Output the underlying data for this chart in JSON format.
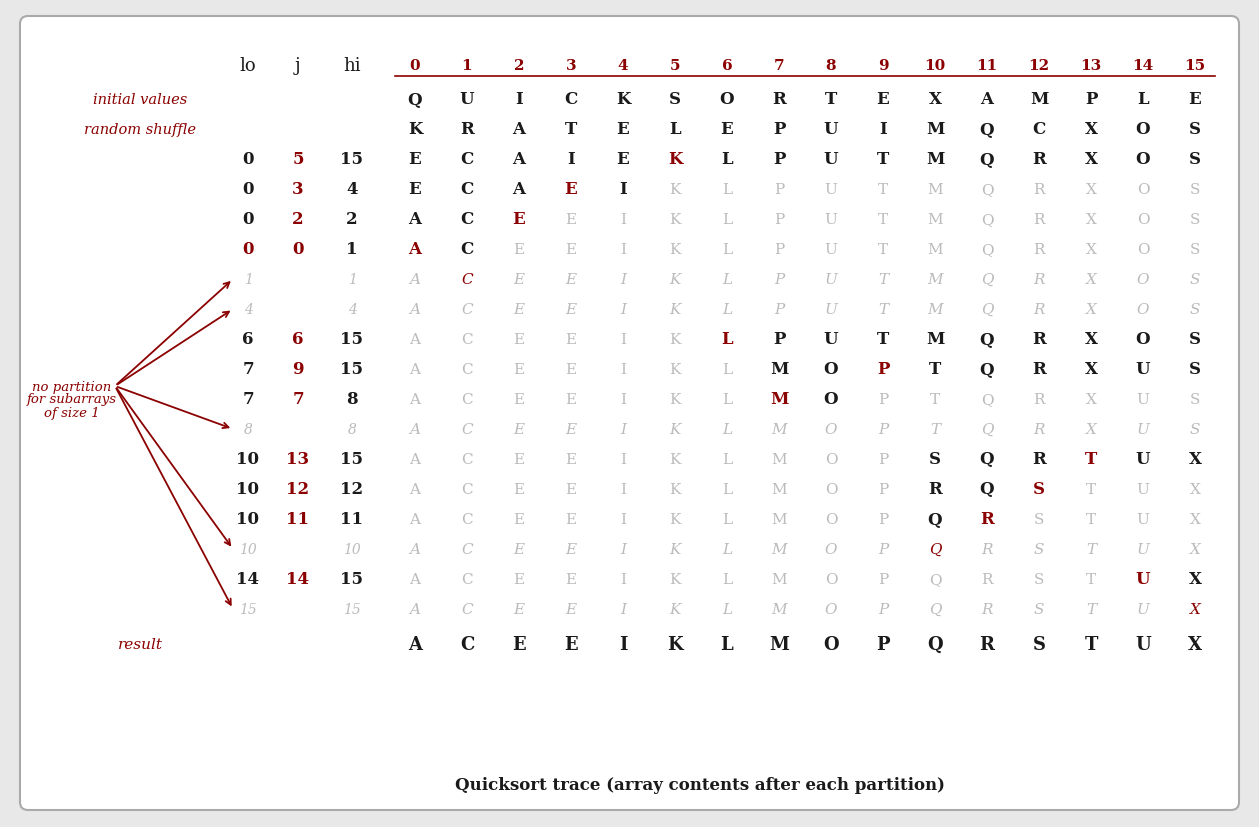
{
  "title": "Quicksort trace (array contents after each partition)",
  "rows": [
    {
      "lo": "",
      "j": "",
      "hi": "",
      "label": "initial values",
      "label_side": "left",
      "data": [
        "Q",
        "U",
        "I",
        "C",
        "K",
        "S",
        "O",
        "R",
        "T",
        "E",
        "X",
        "A",
        "M",
        "P",
        "L",
        "E"
      ],
      "active": [
        0,
        1,
        2,
        3,
        4,
        5,
        6,
        7,
        8,
        9,
        10,
        11,
        12,
        13,
        14,
        15
      ],
      "red_j_idx": -1,
      "red_lo": false,
      "dimmed": false
    },
    {
      "lo": "",
      "j": "",
      "hi": "",
      "label": "random shuffle",
      "label_side": "left",
      "data": [
        "K",
        "R",
        "A",
        "T",
        "E",
        "L",
        "E",
        "P",
        "U",
        "I",
        "M",
        "Q",
        "C",
        "X",
        "O",
        "S"
      ],
      "active": [
        0,
        1,
        2,
        3,
        4,
        5,
        6,
        7,
        8,
        9,
        10,
        11,
        12,
        13,
        14,
        15
      ],
      "red_j_idx": -1,
      "red_lo": false,
      "dimmed": false
    },
    {
      "lo": "0",
      "j": "5",
      "hi": "15",
      "label": "",
      "label_side": "",
      "data": [
        "E",
        "C",
        "A",
        "I",
        "E",
        "K",
        "L",
        "P",
        "U",
        "T",
        "M",
        "Q",
        "R",
        "X",
        "O",
        "S"
      ],
      "active": [
        0,
        1,
        2,
        3,
        4,
        5,
        6,
        7,
        8,
        9,
        10,
        11,
        12,
        13,
        14,
        15
      ],
      "red_j_idx": 5,
      "red_lo": false,
      "dimmed": false
    },
    {
      "lo": "0",
      "j": "3",
      "hi": "4",
      "label": "",
      "label_side": "",
      "data": [
        "E",
        "C",
        "A",
        "E",
        "I",
        "K",
        "L",
        "P",
        "U",
        "T",
        "M",
        "Q",
        "R",
        "X",
        "O",
        "S"
      ],
      "active": [
        0,
        1,
        2,
        3,
        4
      ],
      "red_j_idx": 3,
      "red_lo": false,
      "dimmed": false
    },
    {
      "lo": "0",
      "j": "2",
      "hi": "2",
      "label": "",
      "label_side": "",
      "data": [
        "A",
        "C",
        "E",
        "E",
        "I",
        "K",
        "L",
        "P",
        "U",
        "T",
        "M",
        "Q",
        "R",
        "X",
        "O",
        "S"
      ],
      "active": [
        0,
        1,
        2
      ],
      "red_j_idx": 2,
      "red_lo": false,
      "dimmed": false
    },
    {
      "lo": "0",
      "j": "0",
      "hi": "1",
      "label": "",
      "label_side": "",
      "data": [
        "A",
        "C",
        "E",
        "E",
        "I",
        "K",
        "L",
        "P",
        "U",
        "T",
        "M",
        "Q",
        "R",
        "X",
        "O",
        "S"
      ],
      "active": [
        0,
        1
      ],
      "red_j_idx": 0,
      "red_lo": true,
      "dimmed": false
    },
    {
      "lo": "1",
      "j": "",
      "hi": "1",
      "label": "",
      "label_side": "",
      "data": [
        "A",
        "C",
        "E",
        "E",
        "I",
        "K",
        "L",
        "P",
        "U",
        "T",
        "M",
        "Q",
        "R",
        "X",
        "O",
        "S"
      ],
      "active": [],
      "red_j_idx": -1,
      "red_lo": false,
      "dimmed": true,
      "dim_lo": "1",
      "dim_hi": "1",
      "red_data_idx": 1
    },
    {
      "lo": "4",
      "j": "",
      "hi": "4",
      "label": "",
      "label_side": "",
      "data": [
        "A",
        "C",
        "E",
        "E",
        "I",
        "K",
        "L",
        "P",
        "U",
        "T",
        "M",
        "Q",
        "R",
        "X",
        "O",
        "S"
      ],
      "active": [],
      "red_j_idx": -1,
      "red_lo": false,
      "dimmed": true,
      "dim_lo": "4",
      "dim_hi": "4",
      "red_data_idx": -1
    },
    {
      "lo": "6",
      "j": "6",
      "hi": "15",
      "label": "",
      "label_side": "",
      "data": [
        "A",
        "C",
        "E",
        "E",
        "I",
        "K",
        "L",
        "P",
        "U",
        "T",
        "M",
        "Q",
        "R",
        "X",
        "O",
        "S"
      ],
      "active": [
        6,
        7,
        8,
        9,
        10,
        11,
        12,
        13,
        14,
        15
      ],
      "red_j_idx": 6,
      "red_lo": false,
      "dimmed": false
    },
    {
      "lo": "7",
      "j": "9",
      "hi": "15",
      "label": "",
      "label_side": "",
      "data": [
        "A",
        "C",
        "E",
        "E",
        "I",
        "K",
        "L",
        "M",
        "O",
        "P",
        "T",
        "Q",
        "R",
        "X",
        "U",
        "S"
      ],
      "active": [
        7,
        8,
        9,
        10,
        11,
        12,
        13,
        14,
        15
      ],
      "red_j_idx": 9,
      "red_lo": false,
      "dimmed": false
    },
    {
      "lo": "7",
      "j": "7",
      "hi": "8",
      "label": "",
      "label_side": "",
      "data": [
        "A",
        "C",
        "E",
        "E",
        "I",
        "K",
        "L",
        "M",
        "O",
        "P",
        "T",
        "Q",
        "R",
        "X",
        "U",
        "S"
      ],
      "active": [
        7,
        8
      ],
      "red_j_idx": 7,
      "red_lo": false,
      "dimmed": false
    },
    {
      "lo": "8",
      "j": "",
      "hi": "8",
      "label": "",
      "label_side": "",
      "data": [
        "A",
        "C",
        "E",
        "E",
        "I",
        "K",
        "L",
        "M",
        "O",
        "P",
        "T",
        "Q",
        "R",
        "X",
        "U",
        "S"
      ],
      "active": [],
      "red_j_idx": -1,
      "red_lo": false,
      "dimmed": true,
      "dim_lo": "8",
      "dim_hi": "8",
      "red_data_idx": -1
    },
    {
      "lo": "10",
      "j": "13",
      "hi": "15",
      "label": "",
      "label_side": "",
      "data": [
        "A",
        "C",
        "E",
        "E",
        "I",
        "K",
        "L",
        "M",
        "O",
        "P",
        "S",
        "Q",
        "R",
        "T",
        "U",
        "X"
      ],
      "active": [
        10,
        11,
        12,
        13,
        14,
        15
      ],
      "red_j_idx": 13,
      "red_lo": false,
      "dimmed": false
    },
    {
      "lo": "10",
      "j": "12",
      "hi": "12",
      "label": "",
      "label_side": "",
      "data": [
        "A",
        "C",
        "E",
        "E",
        "I",
        "K",
        "L",
        "M",
        "O",
        "P",
        "R",
        "Q",
        "S",
        "T",
        "U",
        "X"
      ],
      "active": [
        10,
        11,
        12
      ],
      "red_j_idx": 12,
      "red_lo": false,
      "dimmed": false
    },
    {
      "lo": "10",
      "j": "11",
      "hi": "11",
      "label": "",
      "label_side": "",
      "data": [
        "A",
        "C",
        "E",
        "E",
        "I",
        "K",
        "L",
        "M",
        "O",
        "P",
        "Q",
        "R",
        "S",
        "T",
        "U",
        "X"
      ],
      "active": [
        10,
        11
      ],
      "red_j_idx": 11,
      "red_lo": false,
      "dimmed": false
    },
    {
      "lo": "10",
      "j": "",
      "hi": "10",
      "label": "",
      "label_side": "",
      "data": [
        "A",
        "C",
        "E",
        "E",
        "I",
        "K",
        "L",
        "M",
        "O",
        "P",
        "Q",
        "R",
        "S",
        "T",
        "U",
        "X"
      ],
      "active": [],
      "red_j_idx": -1,
      "red_lo": false,
      "dimmed": true,
      "dim_lo": "10",
      "dim_hi": "10",
      "red_data_idx": 10
    },
    {
      "lo": "14",
      "j": "14",
      "hi": "15",
      "label": "",
      "label_side": "",
      "data": [
        "A",
        "C",
        "E",
        "E",
        "I",
        "K",
        "L",
        "M",
        "O",
        "P",
        "Q",
        "R",
        "S",
        "T",
        "U",
        "X"
      ],
      "active": [
        14,
        15
      ],
      "red_j_idx": 14,
      "red_lo": false,
      "dimmed": false
    },
    {
      "lo": "15",
      "j": "",
      "hi": "15",
      "label": "",
      "label_side": "",
      "data": [
        "A",
        "C",
        "E",
        "E",
        "I",
        "K",
        "L",
        "M",
        "O",
        "P",
        "Q",
        "R",
        "S",
        "T",
        "U",
        "X"
      ],
      "active": [],
      "red_j_idx": -1,
      "red_lo": false,
      "dimmed": true,
      "dim_lo": "15",
      "dim_hi": "15",
      "red_data_idx": 15
    }
  ],
  "result_row": [
    "A",
    "C",
    "E",
    "E",
    "I",
    "K",
    "L",
    "M",
    "O",
    "P",
    "Q",
    "R",
    "S",
    "T",
    "U",
    "X"
  ],
  "red_color": "#8b0000",
  "black_color": "#1a1a1a",
  "gray_active": "#555555",
  "gray_dim": "#bbbbbb",
  "label_color": "#8b0000",
  "annot_text": [
    "no partition",
    "for subarrays",
    "of size 1"
  ],
  "dimmed_arrow_rows": [
    6,
    7,
    11,
    15,
    17
  ]
}
